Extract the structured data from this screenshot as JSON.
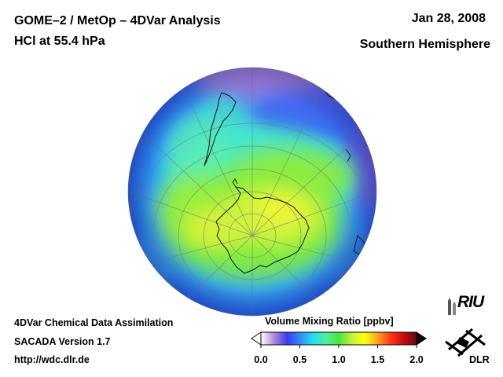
{
  "header": {
    "title_line1": "GOME–2 / MetOp – 4DVar Analysis",
    "title_line2": "HCl at 55.4 hPa",
    "date": "Jan 28, 2008",
    "region": "Southern Hemisphere"
  },
  "footer": {
    "line1": "4DVar Chemical Data Assimilation",
    "line2": "SACADA Version 1.7",
    "line3": "http://wdc.dlr.de"
  },
  "colorbar": {
    "title": "Volume Mixing Ratio [ppbv]",
    "min": 0.0,
    "max": 2.0,
    "ticks": [
      "0.0",
      "0.5",
      "1.0",
      "1.5",
      "2.0"
    ],
    "stops": [
      "#ffffff",
      "#b18bd8",
      "#3a3cf0",
      "#2f8cf7",
      "#22dcf2",
      "#4df0a0",
      "#44e640",
      "#c3f23a",
      "#ffff10",
      "#ffa220",
      "#ff3818",
      "#c80c0c",
      "#5e0a14"
    ]
  },
  "map": {
    "projection": "orthographic, South Pole centred",
    "background_value_ppbv": 0.3,
    "polar_cap_value_ppbv": 1.05,
    "grid": true,
    "coastlines": true,
    "features": [
      "Antarctica",
      "South America"
    ]
  },
  "logos": {
    "riu_text": "RIU",
    "dlr_text": "DLR"
  }
}
